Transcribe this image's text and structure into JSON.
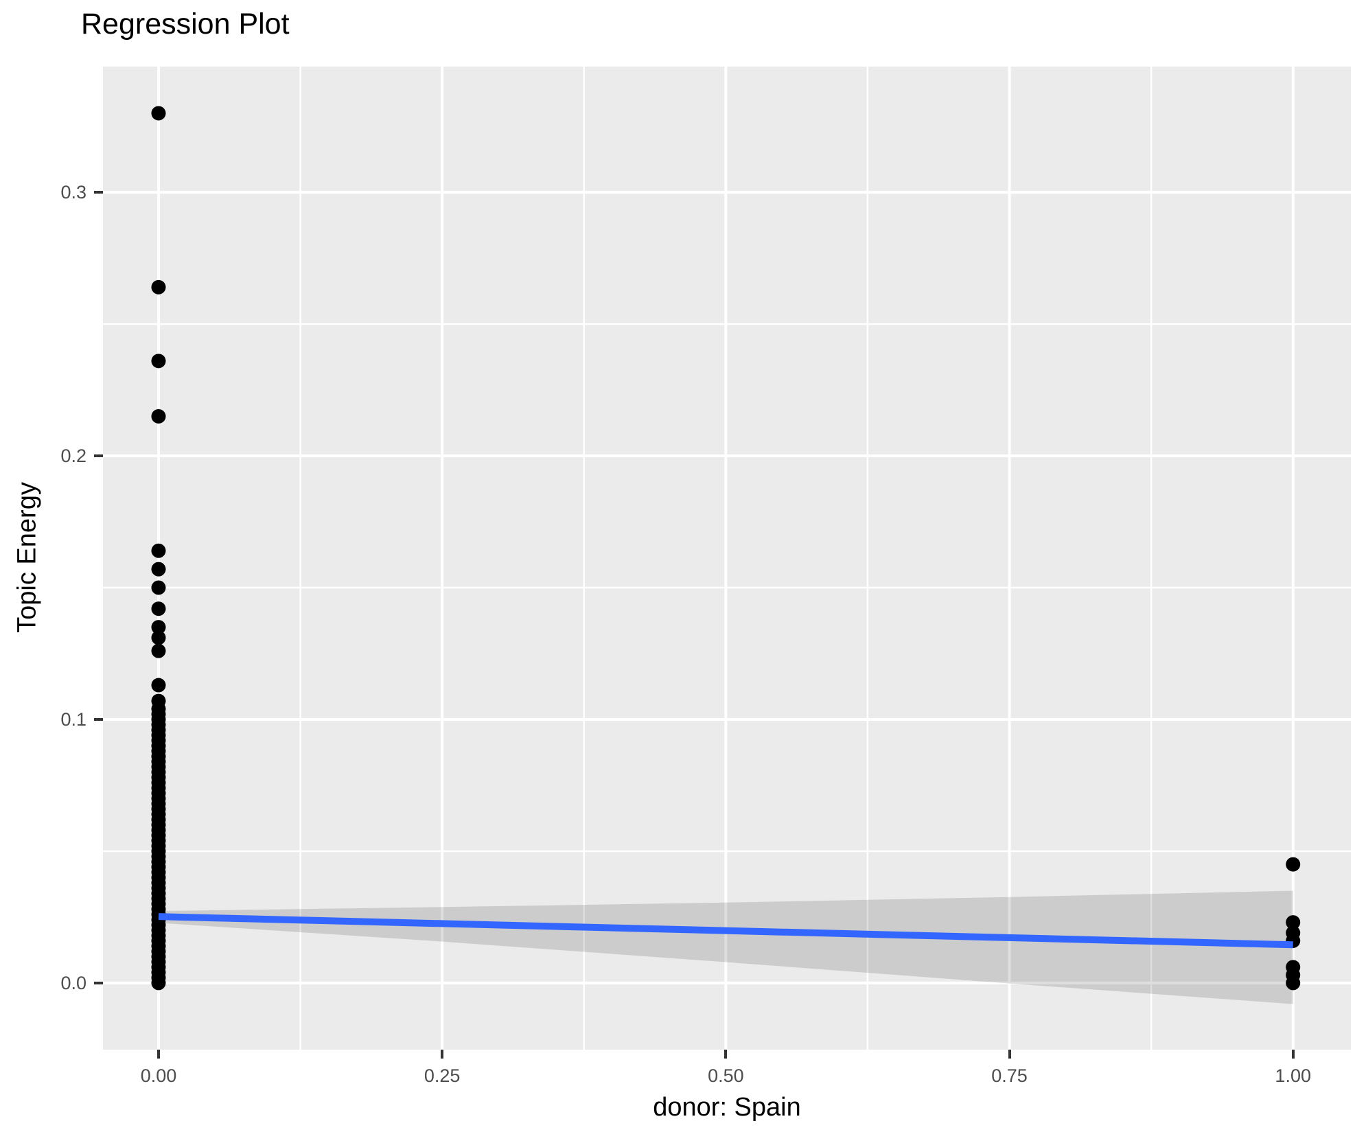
{
  "title": "Regression Plot",
  "colors": {
    "figure_bg": "#FFFFFF",
    "panel_bg": "#EBEBEB",
    "grid": "#FFFFFF",
    "point": "#000000",
    "fit_line": "#3366FF",
    "band": "rgba(0,0,0,0.13)",
    "tick_mark": "#333333",
    "tick_label": "#4D4D4D",
    "text": "#000000"
  },
  "chart_data": {
    "type": "scatter",
    "title": "Regression Plot",
    "xlabel": "donor: Spain",
    "ylabel": "Topic Energy",
    "legend_position": "none",
    "grid": true,
    "xlim": [
      -0.049,
      1.051
    ],
    "ylim": [
      -0.0253,
      0.3477
    ],
    "x_ticks": {
      "values": [
        0,
        0.25,
        0.5,
        0.75,
        1
      ],
      "labels": [
        "0.00",
        "0.25",
        "0.50",
        "0.75",
        "1.00"
      ]
    },
    "y_ticks": {
      "values": [
        0,
        0.1,
        0.2,
        0.3
      ],
      "labels": [
        "0.0",
        "0.1",
        "0.2",
        "0.3"
      ]
    },
    "x_minor": [
      0.125,
      0.375,
      0.625,
      0.875
    ],
    "y_minor": [
      0.05,
      0.15,
      0.25
    ],
    "scatter": [
      {
        "name": "donor-0-points",
        "x": 0,
        "values": [
          0.33,
          0.264,
          0.236,
          0.215,
          0.164,
          0.157,
          0.15,
          0.142,
          0.135,
          0.131,
          0.126,
          0.113,
          0.107,
          0.104,
          0.102,
          0.1,
          0.098,
          0.096,
          0.094,
          0.092,
          0.09,
          0.088,
          0.086,
          0.084,
          0.082,
          0.08,
          0.078,
          0.076,
          0.074,
          0.072,
          0.07,
          0.068,
          0.066,
          0.064,
          0.062,
          0.06,
          0.058,
          0.056,
          0.054,
          0.052,
          0.05,
          0.048,
          0.046,
          0.044,
          0.042,
          0.04,
          0.038,
          0.036,
          0.034,
          0.032,
          0.03,
          0.028,
          0.026,
          0.024,
          0.022,
          0.02,
          0.018,
          0.016,
          0.014,
          0.012,
          0.01,
          0.008,
          0.006,
          0.004,
          0.002,
          0.0
        ]
      },
      {
        "name": "donor-1-points",
        "x": 1,
        "values": [
          0.045,
          0.023,
          0.019,
          0.016,
          0.006,
          0.003,
          0.0
        ]
      }
    ],
    "fit": {
      "name": "regression-line",
      "x": [
        0,
        1
      ],
      "y": [
        0.0252,
        0.0145
      ]
    },
    "band": {
      "name": "confidence-band",
      "x": [
        0,
        0.25,
        0.5,
        0.75,
        1
      ],
      "upper": [
        0.0273,
        0.0288,
        0.0305,
        0.0326,
        0.035
      ],
      "lower": [
        0.0228,
        0.0157,
        0.0079,
        -0.0002,
        -0.008
      ]
    }
  }
}
